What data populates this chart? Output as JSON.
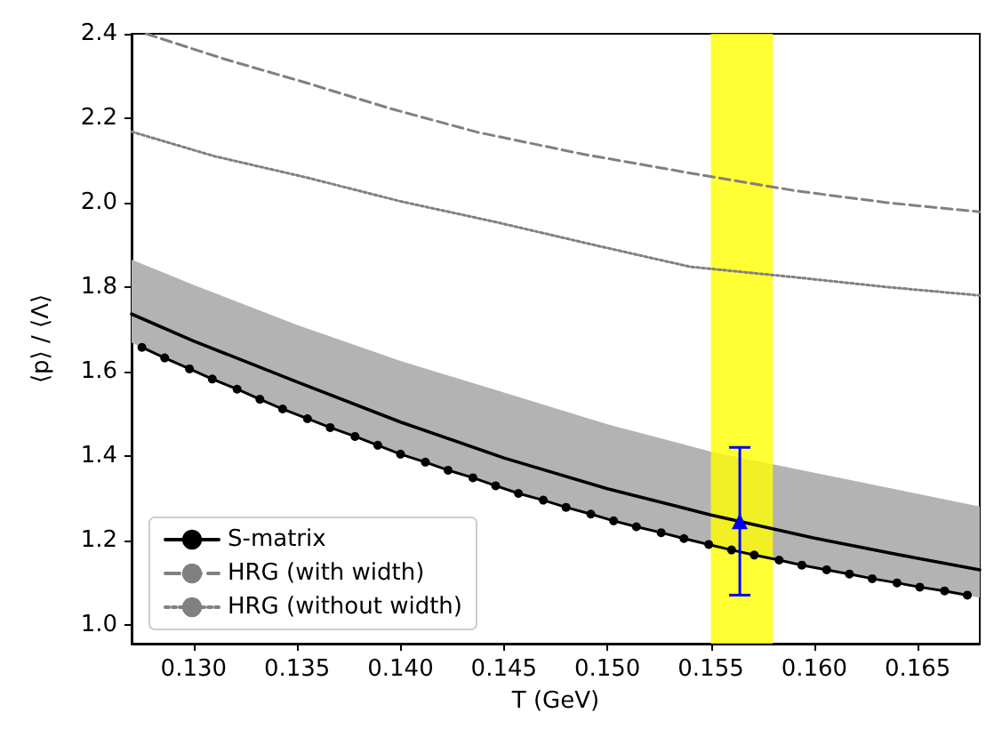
{
  "chart_data": {
    "type": "line",
    "xlabel": "T (GeV)",
    "ylabel": "⟨p⟩ / ⟨Λ⟩",
    "xlim": [
      0.127,
      0.168
    ],
    "ylim": [
      0.955,
      2.4
    ],
    "xticks": [
      {
        "value": 0.13,
        "label": "0.130"
      },
      {
        "value": 0.135,
        "label": "0.135"
      },
      {
        "value": 0.14,
        "label": "0.140"
      },
      {
        "value": 0.145,
        "label": "0.145"
      },
      {
        "value": 0.15,
        "label": "0.150"
      },
      {
        "value": 0.155,
        "label": "0.155"
      },
      {
        "value": 0.16,
        "label": "0.160"
      },
      {
        "value": 0.165,
        "label": "0.165"
      }
    ],
    "yticks": [
      {
        "value": 1,
        "label": "1.0"
      },
      1.2,
      1.4,
      1.6,
      1.8,
      {
        "value": 2,
        "label": "2.0"
      },
      2.2,
      2.4
    ],
    "grid": false,
    "legend": "bottom left",
    "bands": [
      {
        "axis": "x",
        "from": 0.155,
        "to": 0.158,
        "color": "#ffff00"
      }
    ],
    "series": [
      {
        "color": "#000000",
        "marker": "none",
        "line_style": "solid",
        "x": [
          0.127,
          0.13,
          0.135,
          0.14,
          0.145,
          0.15,
          0.155,
          0.16,
          0.165,
          0.168
        ],
        "values": [
          1.736,
          1.672,
          1.575,
          1.48,
          1.395,
          1.322,
          1.26,
          1.205,
          1.157,
          1.13
        ],
        "lower": [
          1.668,
          1.601,
          1.497,
          1.405,
          1.322,
          1.25,
          1.188,
          1.135,
          1.09,
          1.064
        ],
        "upper": [
          1.865,
          1.805,
          1.71,
          1.625,
          1.55,
          1.475,
          1.41,
          1.36,
          1.31,
          1.28
        ]
      },
      {
        "name": "S-matrix",
        "color": "#000000",
        "marker": "circle",
        "line_style": "solid",
        "x": [
          0.1275,
          0.1286,
          0.1298,
          0.1309,
          0.1321,
          0.1332,
          0.1343,
          0.1355,
          0.1366,
          0.1378,
          0.1389,
          0.14,
          0.1412,
          0.1423,
          0.1435,
          0.1446,
          0.1457,
          0.1469,
          0.148,
          0.1492,
          0.1503,
          0.1514,
          0.1526,
          0.1537,
          0.1549,
          0.156,
          0.1571,
          0.1583,
          0.1594,
          0.1606,
          0.1617,
          0.1628,
          0.164,
          0.1651,
          0.1663,
          0.1674
        ],
        "values": [
          1.657,
          1.632,
          1.606,
          1.582,
          1.558,
          1.534,
          1.511,
          1.488,
          1.467,
          1.446,
          1.425,
          1.404,
          1.385,
          1.366,
          1.348,
          1.329,
          1.311,
          1.295,
          1.278,
          1.262,
          1.246,
          1.232,
          1.218,
          1.204,
          1.19,
          1.177,
          1.165,
          1.153,
          1.141,
          1.13,
          1.12,
          1.109,
          1.099,
          1.089,
          1.08,
          1.07
        ]
      },
      {
        "name": "HRG (with width)",
        "color": "#808080",
        "marker": "none",
        "line_style": "dashed",
        "x": [
          0.1277,
          0.1315,
          0.1355,
          0.1395,
          0.1437,
          0.1488,
          0.154,
          0.1591,
          0.1635,
          0.168
        ],
        "values": [
          2.4,
          2.34,
          2.283,
          2.223,
          2.167,
          2.115,
          2.07,
          2.028,
          2.0,
          1.978
        ]
      },
      {
        "name": "HRG (without width)",
        "color": "#808080",
        "marker": "none",
        "line_style": "dotted",
        "x": [
          0.127,
          0.131,
          0.1355,
          0.14,
          0.1446,
          0.1495,
          0.154,
          0.1591,
          0.1635,
          0.168
        ],
        "values": [
          2.168,
          2.11,
          2.059,
          2.003,
          1.954,
          1.898,
          1.848,
          1.823,
          1.8,
          1.78
        ]
      },
      {
        "type": "scatter",
        "color": "#0000ff",
        "marker": "triangle",
        "x": [
          0.1564
        ],
        "values": [
          1.245
        ],
        "errors": [
          0.175
        ]
      }
    ]
  }
}
